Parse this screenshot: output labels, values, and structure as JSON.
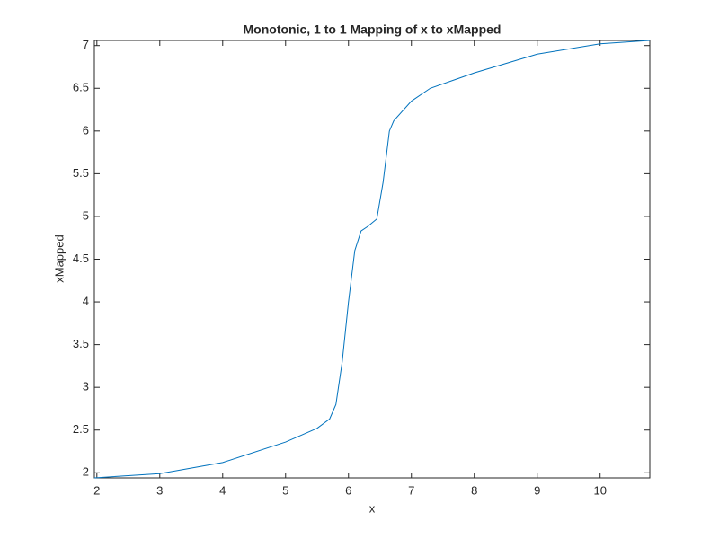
{
  "chart_data": {
    "type": "line",
    "title": "Monotonic, 1 to 1 Mapping of x to xMapped",
    "x_label": "x",
    "y_label": "xMapped",
    "x": [
      1.96,
      3,
      4,
      5,
      5.5,
      5.7,
      5.8,
      5.9,
      6.0,
      6.1,
      6.2,
      6.3,
      6.45,
      6.55,
      6.65,
      6.72,
      7.0,
      7.3,
      8,
      9,
      10,
      10.79
    ],
    "series": [
      {
        "color": "#0072bd",
        "values": [
          1.94,
          1.99,
          2.12,
          2.36,
          2.52,
          2.63,
          2.8,
          3.3,
          4.0,
          4.6,
          4.83,
          4.88,
          4.97,
          5.4,
          6.0,
          6.12,
          6.35,
          6.5,
          6.68,
          6.9,
          7.02,
          7.06
        ]
      }
    ],
    "xlim": [
      1.96,
      10.79
    ],
    "ylim": [
      1.94,
      7.06
    ],
    "xticks": [
      2,
      3,
      4,
      5,
      6,
      7,
      8,
      9,
      10
    ],
    "yticks": [
      2,
      2.5,
      3,
      3.5,
      4,
      4.5,
      5,
      5.5,
      6,
      6.5,
      7
    ],
    "grid": false
  }
}
